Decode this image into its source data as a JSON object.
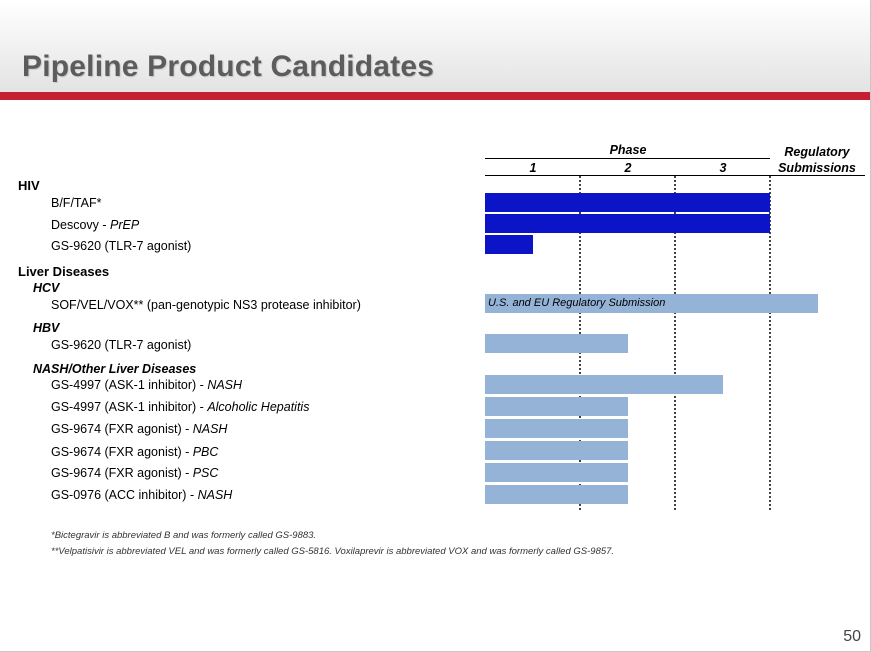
{
  "title": "Pipeline Product Candidates",
  "page_number": "50",
  "phase_header": "Phase",
  "regulatory_header_line1": "Regulatory",
  "regulatory_header_line2": "Submissions",
  "colors": {
    "hiv": "#0c14c8",
    "liver": "#95b3d7",
    "accent": "#c4202f"
  },
  "chart_data": {
    "type": "bar",
    "orientation": "horizontal",
    "stage_columns": [
      "1",
      "2",
      "3",
      "Regulatory Submissions"
    ],
    "sections": [
      "HIV",
      "Liver Diseases"
    ],
    "subsections": [
      "HCV",
      "HBV",
      "NASH/Other Liver Diseases"
    ],
    "rows": [
      {
        "section": "HIV",
        "name": "B/F/TAF*",
        "indication": "",
        "stage_reached": 3,
        "color": "hiv",
        "bar_label": ""
      },
      {
        "section": "HIV",
        "name": "Descovy - ",
        "indication": "PrEP",
        "stage_reached": 3,
        "color": "hiv",
        "bar_label": ""
      },
      {
        "section": "HIV",
        "name": "GS-9620 (TLR-7 agonist)",
        "indication": "",
        "stage_reached": 0.5,
        "color": "hiv",
        "bar_label": ""
      },
      {
        "section": "Liver Diseases",
        "subsection": "HCV",
        "name": "SOF/VEL/VOX** (pan-genotypic NS3 protease inhibitor)",
        "indication": "",
        "stage_reached": 4,
        "color": "liver",
        "bar_label": "U.S. and EU Regulatory Submission"
      },
      {
        "section": "Liver Diseases",
        "subsection": "HBV",
        "name": "GS-9620 (TLR-7 agonist)",
        "indication": "",
        "stage_reached": 1.5,
        "color": "liver",
        "bar_label": ""
      },
      {
        "section": "Liver Diseases",
        "subsection": "NASH/Other Liver Diseases",
        "name": "GS-4997 (ASK-1 inhibitor) - ",
        "indication": "NASH",
        "stage_reached": 2.5,
        "color": "liver",
        "bar_label": ""
      },
      {
        "section": "Liver Diseases",
        "subsection": "NASH/Other Liver Diseases",
        "name": "GS-4997 (ASK-1 inhibitor) - ",
        "indication": "Alcoholic Hepatitis",
        "stage_reached": 1.5,
        "color": "liver",
        "bar_label": ""
      },
      {
        "section": "Liver Diseases",
        "subsection": "NASH/Other Liver Diseases",
        "name": "GS-9674 (FXR agonist) - ",
        "indication": "NASH",
        "stage_reached": 1.5,
        "color": "liver",
        "bar_label": ""
      },
      {
        "section": "Liver Diseases",
        "subsection": "NASH/Other Liver Diseases",
        "name": "GS-9674 (FXR agonist) - ",
        "indication": "PBC",
        "stage_reached": 1.5,
        "color": "liver",
        "bar_label": ""
      },
      {
        "section": "Liver Diseases",
        "subsection": "NASH/Other Liver Diseases",
        "name": "GS-9674 (FXR agonist) - ",
        "indication": "PSC",
        "stage_reached": 1.5,
        "color": "liver",
        "bar_label": ""
      },
      {
        "section": "Liver Diseases",
        "subsection": "NASH/Other Liver Diseases",
        "name": "GS-0976 (ACC inhibitor) - ",
        "indication": "NASH",
        "stage_reached": 1.5,
        "color": "liver",
        "bar_label": ""
      }
    ]
  },
  "footnotes": [
    "*Bictegravir is abbreviated B and was formerly called GS-9883.",
    "**Velpatisivir is abbreviated VEL and was formerly called GS-5816.  Voxilaprevir is abbreviated VOX and was formerly called GS-9857."
  ]
}
